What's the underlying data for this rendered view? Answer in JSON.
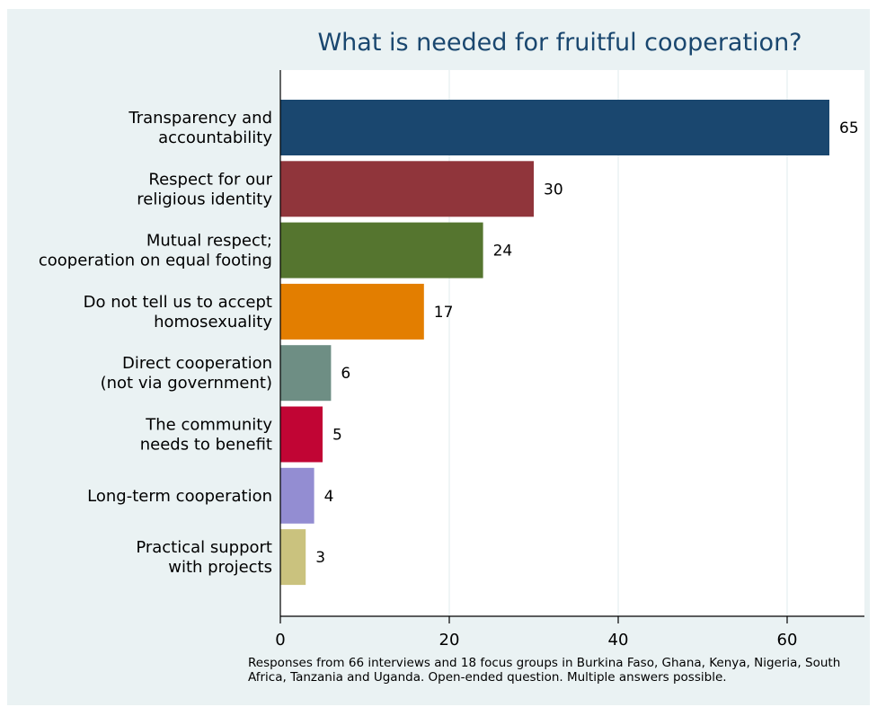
{
  "chart_data": {
    "type": "bar",
    "orientation": "horizontal",
    "title": "What is needed for fruitful cooperation?",
    "note": "Responses from 66 interviews and 18 focus groups in Burkina Faso, Ghana, Kenya, Nigeria, South Africa, Tanzania and Uganda. Open-ended question. Multiple answers possible.",
    "categories": [
      [
        "Transparency and",
        "accountability"
      ],
      [
        "Respect for our",
        "religious identity"
      ],
      [
        "Mutual respect;",
        "cooperation on equal footing"
      ],
      [
        "Do not tell us to accept",
        "homosexuality"
      ],
      [
        "Direct cooperation",
        "(not via government)"
      ],
      [
        "The community",
        "needs to benefit"
      ],
      [
        "Long-term cooperation"
      ],
      [
        "Practical support",
        "with projects"
      ]
    ],
    "values": [
      65,
      30,
      24,
      17,
      6,
      5,
      4,
      3
    ],
    "colors": [
      "#1a476f",
      "#90353b",
      "#55752f",
      "#e37e00",
      "#6e8e84",
      "#c10534",
      "#938dd2",
      "#cac27e"
    ],
    "xticks": [
      0,
      20,
      40,
      60
    ],
    "xlim": [
      0,
      69
    ],
    "grid": true,
    "xlabel": "",
    "ylabel": ""
  }
}
